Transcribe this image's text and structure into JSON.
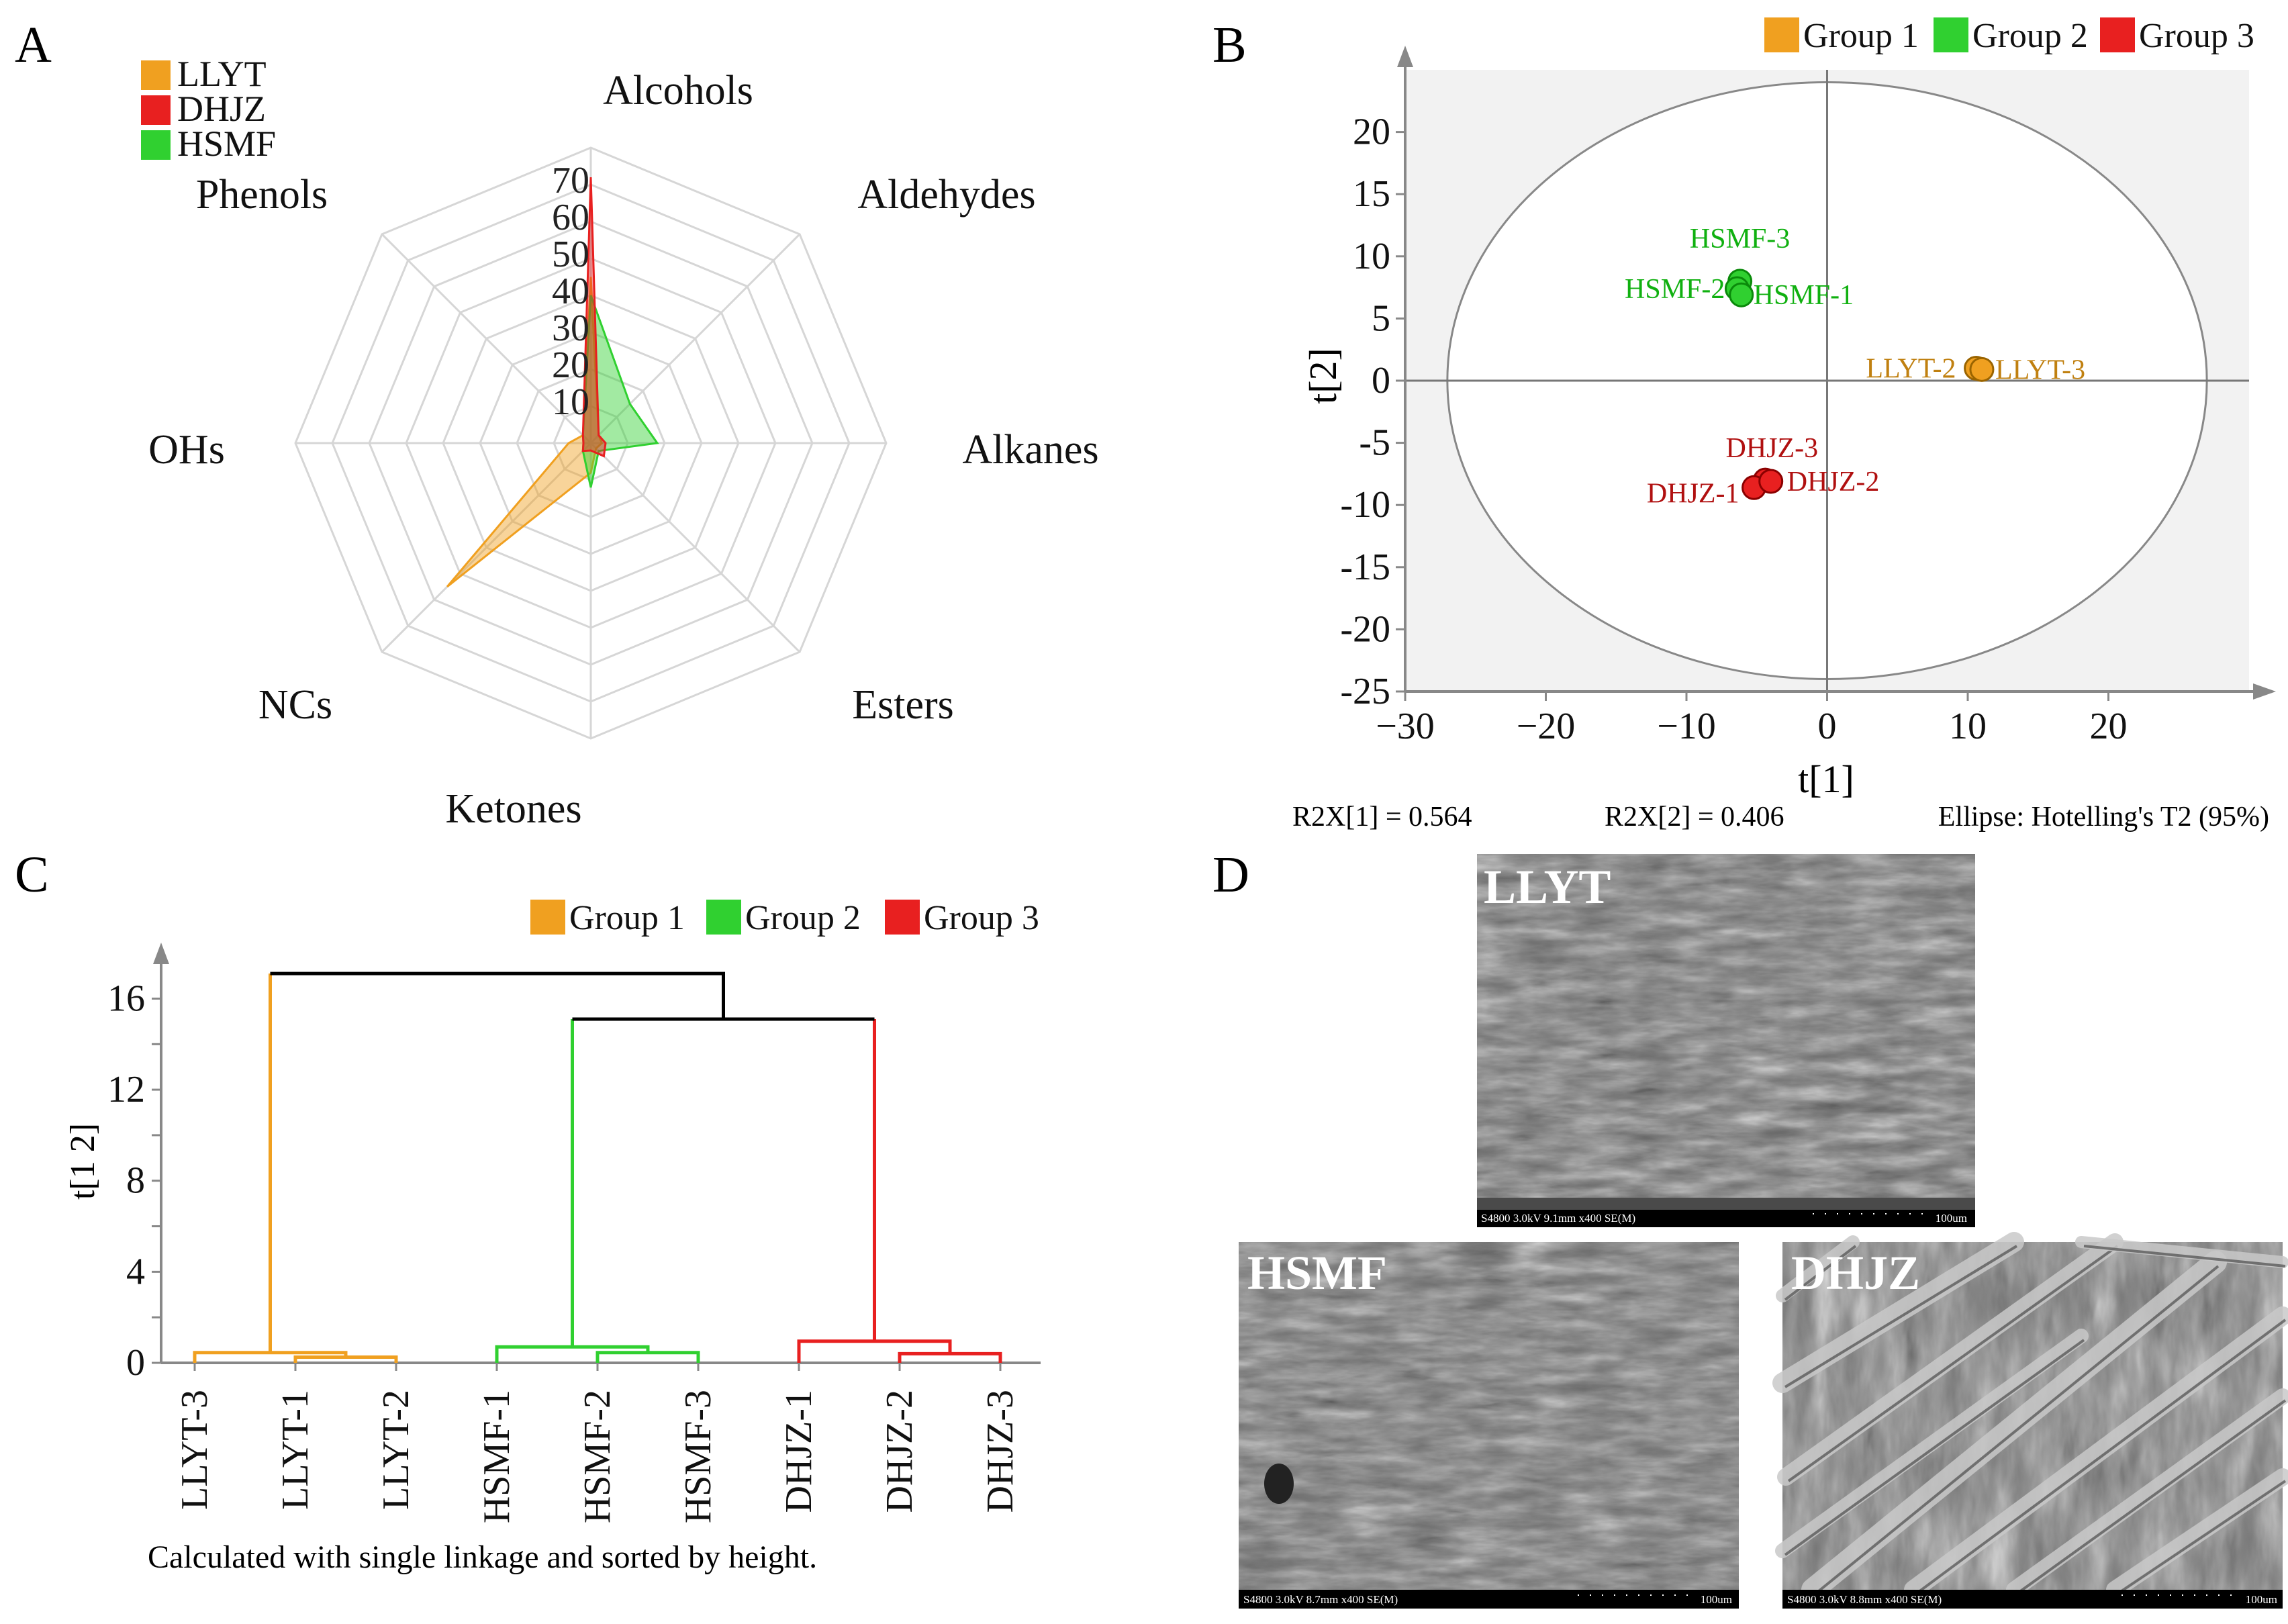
{
  "panels": {
    "A": {
      "letter": "A"
    },
    "B": {
      "letter": "B"
    },
    "C": {
      "letter": "C"
    },
    "D": {
      "letter": "D"
    }
  },
  "colors": {
    "orange": "#F0A020",
    "red": "#E82020",
    "green": "#30D030",
    "orange_text": "#C08010",
    "red_text": "#B01010",
    "green_text": "#10B010",
    "axis": "#222222",
    "grid": "#d8d8d8",
    "plot_bg": "#f2f2f2"
  },
  "chart_data": [
    {
      "panel": "A",
      "type": "radar",
      "axes": [
        "Alcohols",
        "Aldehydes",
        "Alkanes",
        "Esters",
        "Ketones",
        "NCs",
        "OHs",
        "Phenols"
      ],
      "rticks": [
        10,
        20,
        30,
        40,
        50,
        60,
        70
      ],
      "rmax": 80,
      "series": [
        {
          "name": "LLYT",
          "color": "#F0A020",
          "values": [
            45,
            3,
            3,
            2,
            8,
            55,
            6,
            3
          ]
        },
        {
          "name": "DHJZ",
          "color": "#E82020",
          "values": [
            72,
            3,
            4,
            5,
            2,
            3,
            2,
            3
          ]
        },
        {
          "name": "HSMF",
          "color": "#30D030",
          "values": [
            40,
            15,
            18,
            3,
            12,
            3,
            2,
            3
          ]
        }
      ]
    },
    {
      "panel": "B",
      "type": "scatter",
      "legend": [
        {
          "label": "Group 1",
          "color": "#F0A020"
        },
        {
          "label": "Group 2",
          "color": "#30D030"
        },
        {
          "label": "Group 3",
          "color": "#E82020"
        }
      ],
      "xlabel": "t[1]",
      "ylabel": "t[2]",
      "xlim": [
        -30,
        30
      ],
      "ylim": [
        -25,
        25
      ],
      "xticks": [
        -30,
        -20,
        -10,
        0,
        10,
        20
      ],
      "xtick_labels": [
        "−30",
        "−20",
        "−10",
        "0",
        "10",
        "20"
      ],
      "yticks": [
        20,
        15,
        10,
        5,
        0,
        -5,
        -10,
        -15,
        -20,
        -25
      ],
      "ytick_labels": [
        "20",
        "15",
        "10",
        "5",
        "0",
        "-5",
        "-10",
        "-15",
        "-20",
        "-25"
      ],
      "ellipse_radius": [
        27,
        24
      ],
      "points": [
        {
          "label": "HSMF-3",
          "x": -6.2,
          "y": 8.0,
          "group": 2
        },
        {
          "label": "HSMF-2",
          "x": -6.4,
          "y": 7.4,
          "group": 2
        },
        {
          "label": "HSMF-1",
          "x": -6.1,
          "y": 6.9,
          "group": 2
        },
        {
          "label": "LLYT-2",
          "x": 10.6,
          "y": 1.0,
          "group": 1
        },
        {
          "label": "LLYT-3",
          "x": 11.0,
          "y": 0.9,
          "group": 1
        },
        {
          "label": "DHJZ-3",
          "x": -4.4,
          "y": -8.0,
          "group": 3
        },
        {
          "label": "DHJZ-1",
          "x": -5.2,
          "y": -8.6,
          "group": 3
        },
        {
          "label": "DHJZ-2",
          "x": -4.0,
          "y": -8.1,
          "group": 3
        }
      ],
      "footer": {
        "r2x1": "R2X[1] = 0.564",
        "r2x2": "R2X[2] = 0.406",
        "ellipse": "Ellipse: Hotelling's T2 (95%)"
      }
    },
    {
      "panel": "C",
      "type": "dendrogram",
      "legend": [
        {
          "label": "Group 1",
          "color": "#F0A020"
        },
        {
          "label": "Group 2",
          "color": "#30D030"
        },
        {
          "label": "Group 3",
          "color": "#E82020"
        }
      ],
      "ylabel": "t[1 2]",
      "ylim": [
        0,
        17.4
      ],
      "yticks": [
        0,
        4,
        8,
        12,
        16
      ],
      "leaves": [
        "LLYT-3",
        "LLYT-1",
        "LLYT-2",
        "HSMF-1",
        "HSMF-2",
        "HSMF-3",
        "DHJZ-1",
        "DHJZ-2",
        "DHJZ-3"
      ],
      "merges": [
        {
          "height": 0.25,
          "leaves": [
            "LLYT-1",
            "LLYT-2"
          ],
          "group": 1
        },
        {
          "height": 0.45,
          "leaves": [
            "LLYT-3",
            "LLYT-1",
            "LLYT-2"
          ],
          "group": 1
        },
        {
          "height": 0.45,
          "leaves": [
            "HSMF-2",
            "HSMF-3"
          ],
          "group": 2
        },
        {
          "height": 0.7,
          "leaves": [
            "HSMF-1",
            "HSMF-2",
            "HSMF-3"
          ],
          "group": 2
        },
        {
          "height": 0.4,
          "leaves": [
            "DHJZ-2",
            "DHJZ-3"
          ],
          "group": 3
        },
        {
          "height": 0.95,
          "leaves": [
            "DHJZ-1",
            "DHJZ-2",
            "DHJZ-3"
          ],
          "group": 3
        },
        {
          "height": 15.1,
          "leaves": [
            "HSMF",
            "DHJZ"
          ],
          "group": 0
        },
        {
          "height": 17.1,
          "leaves": [
            "LLYT",
            "HSMF+DHJZ"
          ],
          "group": 0
        }
      ],
      "caption": "Calculated with single linkage and sorted by height."
    }
  ],
  "sem_images": [
    {
      "label": "LLYT",
      "scale_text": "S4800 3.0kV 9.1mm x400 SE(M)",
      "scale_bar": "100um"
    },
    {
      "label": "HSMF",
      "scale_text": "S4800 3.0kV 8.7mm x400 SE(M)",
      "scale_bar": "100um"
    },
    {
      "label": "DHJZ",
      "scale_text": "S4800 3.0kV 8.8mm x400 SE(M)",
      "scale_bar": "100um"
    }
  ]
}
